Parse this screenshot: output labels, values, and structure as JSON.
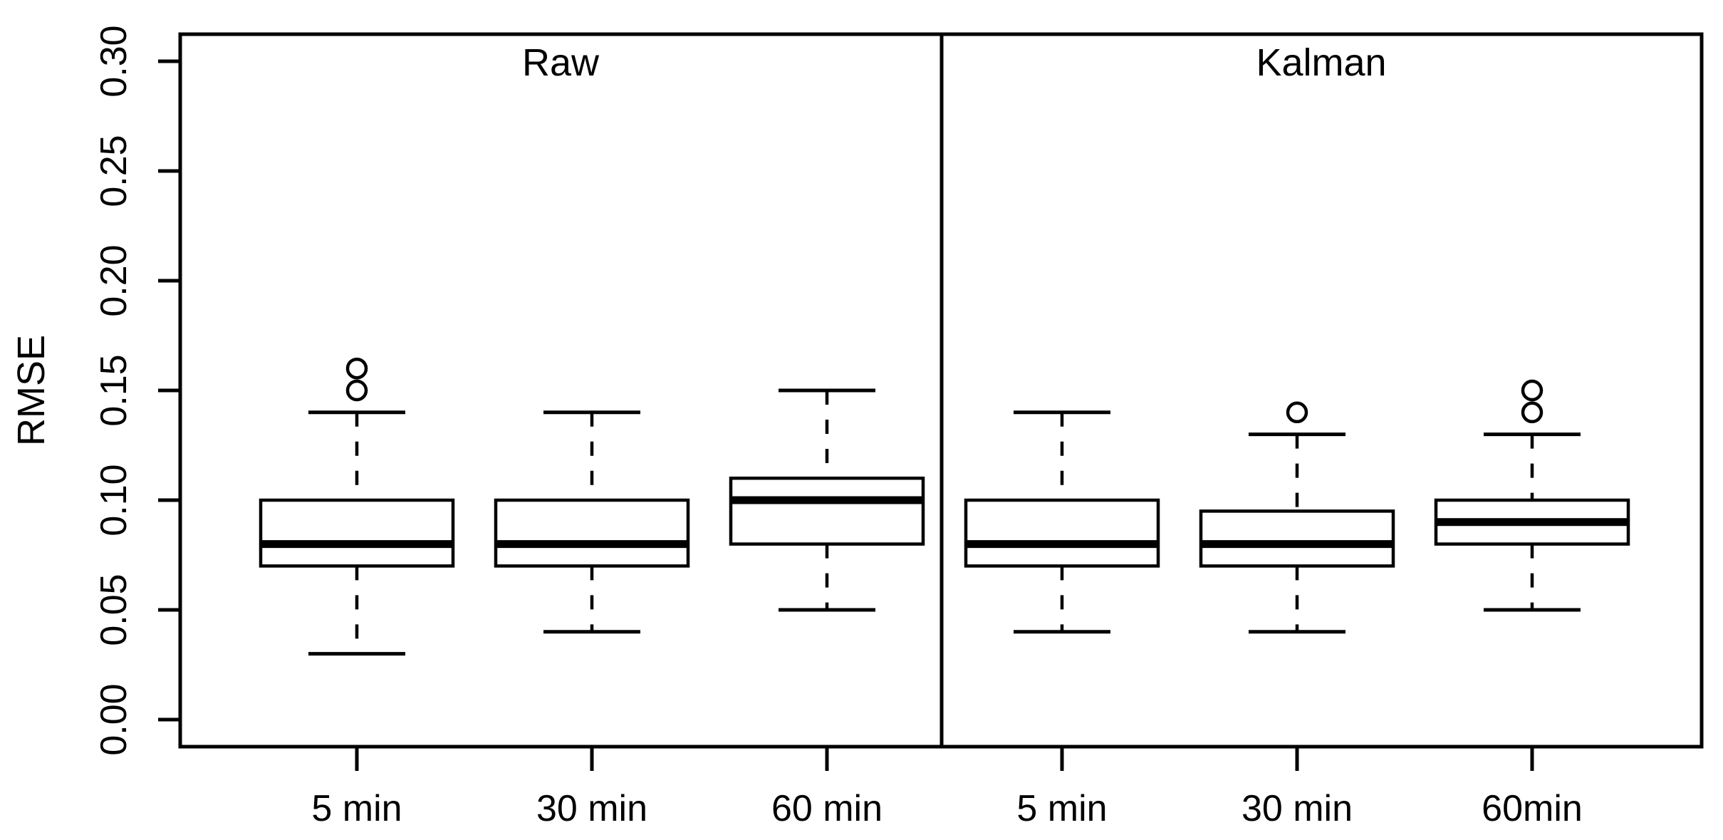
{
  "figure": {
    "background": "#ffffff",
    "ink_color": "#000000"
  },
  "chart_data": {
    "type": "boxplot",
    "title": "",
    "ylabel": "RMSE",
    "xlabel": "",
    "ylim": [
      0.0,
      0.305
    ],
    "grid": false,
    "orientation": "vertical",
    "yticks": [
      0.0,
      0.05,
      0.1,
      0.15,
      0.2,
      0.25,
      0.3
    ],
    "ytick_labels": [
      "0.00",
      "0.05",
      "0.10",
      "0.15",
      "0.20",
      "0.25",
      "0.30"
    ],
    "panels": [
      {
        "title": "Raw",
        "boxes": [
          {
            "label": "5 min",
            "whisker_low": 0.03,
            "q1": 0.07,
            "median": 0.08,
            "q3": 0.1,
            "whisker_high": 0.14,
            "outliers": [
              0.15,
              0.16
            ]
          },
          {
            "label": "30 min",
            "whisker_low": 0.04,
            "q1": 0.07,
            "median": 0.08,
            "q3": 0.1,
            "whisker_high": 0.14,
            "outliers": []
          },
          {
            "label": "60 min",
            "whisker_low": 0.05,
            "q1": 0.08,
            "median": 0.1,
            "q3": 0.11,
            "whisker_high": 0.15,
            "outliers": []
          }
        ]
      },
      {
        "title": "Kalman",
        "boxes": [
          {
            "label": "5 min",
            "whisker_low": 0.04,
            "q1": 0.07,
            "median": 0.08,
            "q3": 0.1,
            "whisker_high": 0.14,
            "outliers": []
          },
          {
            "label": "30 min",
            "whisker_low": 0.04,
            "q1": 0.07,
            "median": 0.08,
            "q3": 0.095,
            "whisker_high": 0.13,
            "outliers": [
              0.14
            ]
          },
          {
            "label": "60min",
            "whisker_low": 0.05,
            "q1": 0.08,
            "median": 0.09,
            "q3": 0.1,
            "whisker_high": 0.13,
            "outliers": [
              0.14,
              0.15
            ]
          }
        ]
      }
    ]
  }
}
